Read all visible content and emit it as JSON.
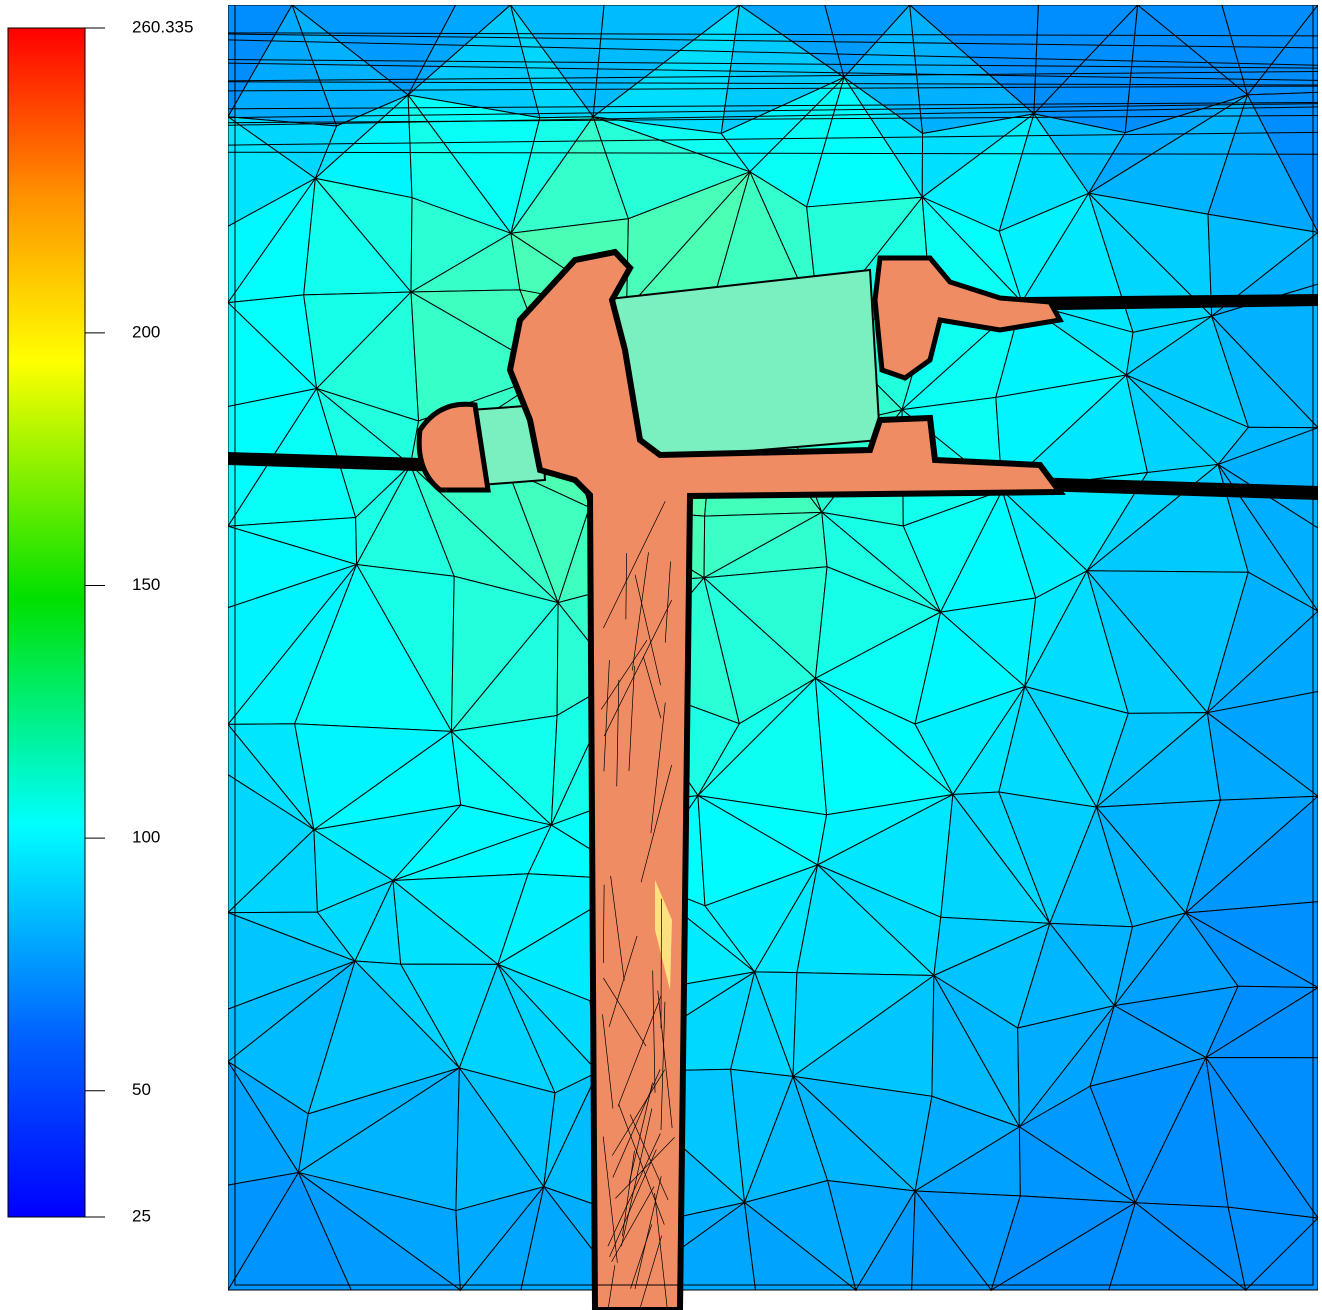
{
  "colorbar": {
    "min": 25,
    "max": 260.335,
    "ticks": [
      25,
      50,
      100,
      150,
      200,
      260.335
    ]
  }
}
